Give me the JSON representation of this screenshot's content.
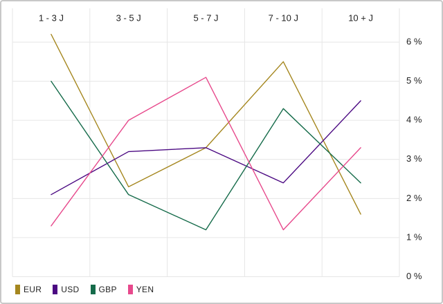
{
  "chart_data": {
    "type": "line",
    "title": "",
    "xlabel": "",
    "ylabel": "",
    "categories": [
      "1 - 3 J",
      "3 - 5 J",
      "5 - 7 J",
      "7 - 10 J",
      "10 + J"
    ],
    "series": [
      {
        "name": "EUR",
        "color": "#a5871f",
        "values": [
          6.2,
          2.3,
          3.3,
          5.5,
          1.6
        ]
      },
      {
        "name": "USD",
        "color": "#4b0982",
        "values": [
          2.1,
          3.2,
          3.3,
          2.4,
          4.5
        ]
      },
      {
        "name": "GBP",
        "color": "#156b4a",
        "values": [
          5.0,
          2.1,
          1.2,
          4.3,
          2.4
        ]
      },
      {
        "name": "YEN",
        "color": "#e7498c",
        "values": [
          1.3,
          4.0,
          5.1,
          1.2,
          3.3
        ]
      }
    ],
    "x_axis": {
      "position": "top"
    },
    "y_axis": {
      "position": "right",
      "min": 0,
      "max": 6,
      "tick_step": 1,
      "unit": "%",
      "tick_labels": [
        "0 %",
        "1 %",
        "2 %",
        "3 %",
        "4 %",
        "5 %",
        "6 %"
      ]
    },
    "grid": true,
    "legend": {
      "position": "bottom-left",
      "items": [
        "EUR",
        "USD",
        "GBP",
        "YEN"
      ]
    }
  },
  "colors": {
    "grid": "#e6e6e6",
    "text": "#222222",
    "border": "#c8c8c8",
    "background": "#ffffff"
  }
}
